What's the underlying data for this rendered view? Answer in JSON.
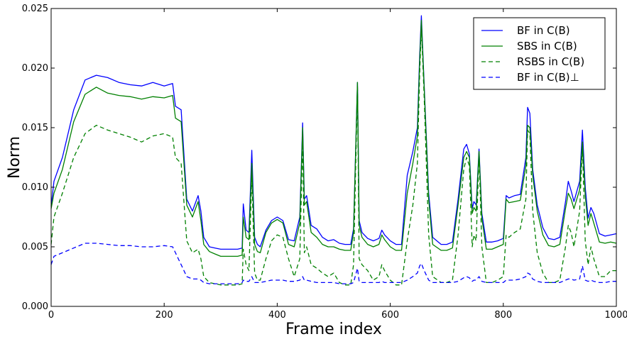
{
  "chart_data": {
    "type": "line",
    "title": "",
    "xlabel": "Frame index",
    "ylabel": "Norm",
    "xlim": [
      0,
      1000
    ],
    "ylim": [
      0,
      0.025
    ],
    "xticks": [
      "0",
      "200",
      "400",
      "600",
      "800",
      "1000"
    ],
    "yticks": [
      "0.000",
      "0.005",
      "0.010",
      "0.015",
      "0.020",
      "0.025"
    ],
    "grid": false,
    "legend_position": "top-right",
    "series": [
      {
        "name": "BF  in C(B)",
        "color": "#0000ff",
        "dash": "solid",
        "x": [
          0,
          5,
          20,
          40,
          60,
          80,
          100,
          120,
          140,
          160,
          180,
          200,
          215,
          220,
          230,
          240,
          250,
          260,
          265,
          270,
          280,
          290,
          300,
          320,
          330,
          338,
          340,
          345,
          350,
          355,
          360,
          365,
          370,
          380,
          390,
          400,
          410,
          420,
          430,
          440,
          445,
          448,
          452,
          460,
          470,
          480,
          490,
          500,
          510,
          520,
          530,
          535,
          542,
          545,
          550,
          560,
          570,
          580,
          585,
          590,
          600,
          610,
          620,
          630,
          640,
          648,
          652,
          655,
          660,
          668,
          675,
          690,
          700,
          710,
          720,
          730,
          735,
          740,
          745,
          748,
          752,
          757,
          762,
          770,
          780,
          790,
          800,
          805,
          810,
          820,
          830,
          840,
          843,
          847,
          852,
          860,
          870,
          880,
          890,
          900,
          910,
          915,
          920,
          925,
          935,
          940,
          945,
          950,
          955,
          960,
          970,
          980,
          990,
          1000
        ],
        "y": [
          0.0084,
          0.0105,
          0.0125,
          0.0165,
          0.019,
          0.0194,
          0.0192,
          0.0188,
          0.0186,
          0.0185,
          0.0188,
          0.0185,
          0.0187,
          0.0168,
          0.0165,
          0.009,
          0.008,
          0.0093,
          0.008,
          0.0058,
          0.005,
          0.0049,
          0.0048,
          0.0048,
          0.0048,
          0.0049,
          0.0086,
          0.0064,
          0.0062,
          0.0131,
          0.0058,
          0.0052,
          0.005,
          0.0064,
          0.0072,
          0.0075,
          0.0072,
          0.0056,
          0.0055,
          0.0075,
          0.0154,
          0.009,
          0.0093,
          0.0068,
          0.0065,
          0.0058,
          0.0055,
          0.0056,
          0.0053,
          0.0052,
          0.0052,
          0.0065,
          0.0188,
          0.0072,
          0.0062,
          0.0057,
          0.0055,
          0.0057,
          0.0064,
          0.006,
          0.0055,
          0.0052,
          0.0052,
          0.011,
          0.013,
          0.015,
          0.021,
          0.0244,
          0.0185,
          0.0095,
          0.0058,
          0.0052,
          0.0052,
          0.0054,
          0.009,
          0.0132,
          0.0136,
          0.0128,
          0.0082,
          0.0088,
          0.0085,
          0.0132,
          0.0078,
          0.0054,
          0.0054,
          0.0055,
          0.0057,
          0.0093,
          0.0091,
          0.0093,
          0.0094,
          0.0125,
          0.0167,
          0.0162,
          0.0115,
          0.0085,
          0.0066,
          0.0057,
          0.0056,
          0.0058,
          0.0088,
          0.0105,
          0.0097,
          0.0088,
          0.0105,
          0.0148,
          0.01,
          0.0074,
          0.0083,
          0.0078,
          0.0061,
          0.0059,
          0.006,
          0.0061
        ]
      },
      {
        "name": "SBS  in C(B)",
        "color": "#008000",
        "dash": "solid",
        "x": [
          0,
          5,
          20,
          40,
          60,
          80,
          100,
          120,
          140,
          160,
          180,
          200,
          215,
          220,
          230,
          240,
          250,
          260,
          265,
          270,
          280,
          290,
          300,
          320,
          330,
          338,
          340,
          345,
          350,
          355,
          360,
          365,
          370,
          380,
          390,
          400,
          410,
          420,
          430,
          440,
          445,
          448,
          452,
          460,
          470,
          480,
          490,
          500,
          510,
          520,
          530,
          535,
          542,
          545,
          550,
          560,
          570,
          580,
          585,
          590,
          600,
          610,
          620,
          630,
          640,
          648,
          652,
          655,
          660,
          668,
          675,
          690,
          700,
          710,
          720,
          730,
          735,
          740,
          745,
          748,
          752,
          757,
          762,
          770,
          780,
          790,
          800,
          805,
          810,
          820,
          830,
          840,
          843,
          847,
          852,
          860,
          870,
          880,
          890,
          900,
          910,
          915,
          920,
          925,
          935,
          940,
          945,
          950,
          955,
          960,
          970,
          980,
          990,
          1000
        ],
        "y": [
          0.0082,
          0.0095,
          0.0115,
          0.0155,
          0.0178,
          0.0184,
          0.0179,
          0.0177,
          0.0176,
          0.0174,
          0.0176,
          0.0175,
          0.0177,
          0.0158,
          0.0155,
          0.0085,
          0.0075,
          0.0088,
          0.0072,
          0.0052,
          0.0046,
          0.0044,
          0.0042,
          0.0042,
          0.0042,
          0.0043,
          0.0075,
          0.0058,
          0.0056,
          0.012,
          0.0052,
          0.0046,
          0.0045,
          0.0062,
          0.007,
          0.0073,
          0.007,
          0.0052,
          0.005,
          0.007,
          0.015,
          0.0085,
          0.0088,
          0.0062,
          0.0058,
          0.0052,
          0.005,
          0.005,
          0.0048,
          0.0047,
          0.0047,
          0.0062,
          0.0188,
          0.0068,
          0.0058,
          0.0052,
          0.005,
          0.0052,
          0.006,
          0.0056,
          0.005,
          0.0047,
          0.0047,
          0.0095,
          0.012,
          0.0143,
          0.0205,
          0.024,
          0.0183,
          0.009,
          0.0052,
          0.0047,
          0.0047,
          0.0049,
          0.0085,
          0.0125,
          0.013,
          0.0125,
          0.0078,
          0.0083,
          0.008,
          0.013,
          0.0074,
          0.0048,
          0.0048,
          0.005,
          0.0052,
          0.009,
          0.0087,
          0.0088,
          0.0089,
          0.0118,
          0.0152,
          0.015,
          0.011,
          0.008,
          0.006,
          0.0051,
          0.005,
          0.0052,
          0.0082,
          0.0095,
          0.009,
          0.0082,
          0.0098,
          0.0138,
          0.0093,
          0.0068,
          0.0078,
          0.007,
          0.0054,
          0.0053,
          0.0054,
          0.0053
        ]
      },
      {
        "name": "RSBS  in C(B)",
        "color": "#008000",
        "dash": "dashed",
        "x": [
          0,
          5,
          20,
          40,
          60,
          80,
          100,
          120,
          140,
          160,
          180,
          200,
          215,
          220,
          230,
          240,
          250,
          260,
          265,
          270,
          280,
          290,
          300,
          320,
          330,
          338,
          340,
          345,
          350,
          355,
          360,
          365,
          370,
          380,
          390,
          400,
          410,
          420,
          430,
          440,
          445,
          448,
          452,
          460,
          470,
          480,
          490,
          500,
          510,
          520,
          530,
          535,
          542,
          545,
          550,
          560,
          570,
          580,
          585,
          590,
          600,
          610,
          620,
          630,
          640,
          648,
          652,
          655,
          660,
          668,
          675,
          690,
          700,
          710,
          720,
          730,
          735,
          740,
          745,
          748,
          752,
          757,
          762,
          770,
          780,
          790,
          800,
          805,
          810,
          820,
          830,
          840,
          843,
          847,
          852,
          860,
          870,
          880,
          890,
          900,
          910,
          915,
          920,
          925,
          935,
          940,
          945,
          950,
          955,
          960,
          970,
          980,
          990,
          1000
        ],
        "y": [
          0.0052,
          0.0075,
          0.0095,
          0.0125,
          0.0145,
          0.0152,
          0.0148,
          0.0145,
          0.0142,
          0.0138,
          0.0143,
          0.0145,
          0.0142,
          0.0125,
          0.012,
          0.0055,
          0.0045,
          0.0048,
          0.004,
          0.0025,
          0.002,
          0.0019,
          0.0018,
          0.0018,
          0.0018,
          0.0019,
          0.0048,
          0.0035,
          0.003,
          0.011,
          0.0028,
          0.0022,
          0.0022,
          0.004,
          0.0055,
          0.006,
          0.0058,
          0.004,
          0.0025,
          0.004,
          0.014,
          0.0045,
          0.005,
          0.0035,
          0.0032,
          0.0028,
          0.0025,
          0.0028,
          0.002,
          0.0018,
          0.0018,
          0.0035,
          0.0185,
          0.004,
          0.0035,
          0.003,
          0.0022,
          0.0025,
          0.0035,
          0.003,
          0.0022,
          0.0018,
          0.0018,
          0.0055,
          0.0085,
          0.012,
          0.0195,
          0.0235,
          0.0175,
          0.006,
          0.0025,
          0.002,
          0.002,
          0.0022,
          0.006,
          0.0115,
          0.0125,
          0.0118,
          0.005,
          0.006,
          0.0055,
          0.0128,
          0.005,
          0.002,
          0.002,
          0.0022,
          0.0025,
          0.006,
          0.0058,
          0.0062,
          0.0065,
          0.009,
          0.0148,
          0.0145,
          0.008,
          0.0045,
          0.0028,
          0.002,
          0.002,
          0.0022,
          0.005,
          0.0068,
          0.0062,
          0.005,
          0.008,
          0.0135,
          0.0055,
          0.0035,
          0.005,
          0.004,
          0.0025,
          0.0025,
          0.003,
          0.003
        ]
      },
      {
        "name": "BF in C(B)⊥",
        "color": "#0000ff",
        "dash": "dashed",
        "x": [
          0,
          5,
          20,
          40,
          60,
          80,
          100,
          120,
          140,
          160,
          180,
          200,
          215,
          220,
          230,
          240,
          250,
          260,
          265,
          270,
          280,
          290,
          300,
          320,
          330,
          338,
          340,
          345,
          350,
          355,
          360,
          365,
          370,
          380,
          390,
          400,
          410,
          420,
          430,
          440,
          445,
          448,
          452,
          460,
          470,
          480,
          490,
          500,
          510,
          520,
          530,
          535,
          542,
          545,
          550,
          560,
          570,
          580,
          585,
          590,
          600,
          610,
          620,
          630,
          640,
          648,
          652,
          655,
          660,
          668,
          675,
          690,
          700,
          710,
          720,
          730,
          735,
          740,
          745,
          748,
          752,
          757,
          762,
          770,
          780,
          790,
          800,
          805,
          810,
          820,
          830,
          840,
          843,
          847,
          852,
          860,
          870,
          880,
          890,
          900,
          910,
          915,
          920,
          925,
          935,
          940,
          945,
          950,
          955,
          960,
          970,
          980,
          990,
          1000
        ],
        "y": [
          0.0035,
          0.0042,
          0.0045,
          0.0049,
          0.0053,
          0.0053,
          0.0052,
          0.0051,
          0.0051,
          0.005,
          0.005,
          0.0051,
          0.005,
          0.0045,
          0.0035,
          0.0025,
          0.0023,
          0.0023,
          0.0022,
          0.002,
          0.0019,
          0.0019,
          0.0019,
          0.0019,
          0.0019,
          0.002,
          0.0022,
          0.0021,
          0.0021,
          0.0025,
          0.002,
          0.002,
          0.002,
          0.0021,
          0.0022,
          0.0022,
          0.0022,
          0.0021,
          0.0021,
          0.0022,
          0.0025,
          0.0022,
          0.0022,
          0.0021,
          0.002,
          0.002,
          0.002,
          0.002,
          0.0019,
          0.0019,
          0.0019,
          0.002,
          0.0032,
          0.0021,
          0.002,
          0.002,
          0.002,
          0.002,
          0.0021,
          0.002,
          0.002,
          0.002,
          0.002,
          0.0022,
          0.0025,
          0.0028,
          0.0034,
          0.0036,
          0.003,
          0.0022,
          0.002,
          0.002,
          0.002,
          0.002,
          0.0021,
          0.0024,
          0.0025,
          0.0024,
          0.0021,
          0.0022,
          0.0022,
          0.0025,
          0.0021,
          0.002,
          0.002,
          0.002,
          0.002,
          0.0022,
          0.0022,
          0.0022,
          0.0023,
          0.0025,
          0.0028,
          0.0027,
          0.0023,
          0.0021,
          0.002,
          0.002,
          0.002,
          0.002,
          0.0022,
          0.0023,
          0.0023,
          0.0022,
          0.0023,
          0.0034,
          0.0022,
          0.0021,
          0.0022,
          0.0021,
          0.002,
          0.002,
          0.0021,
          0.0021
        ]
      }
    ]
  }
}
